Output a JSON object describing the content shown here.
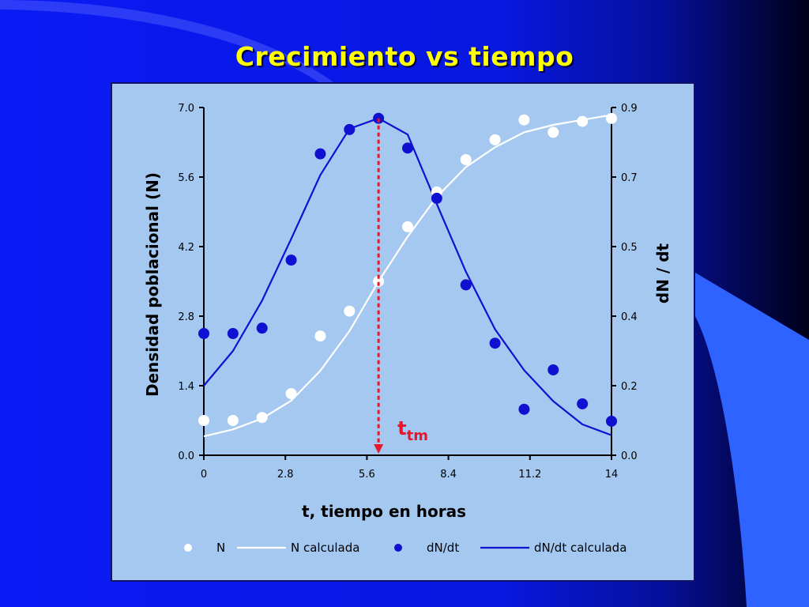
{
  "slide": {
    "title": "Crecimiento vs tiempo",
    "colors": {
      "background": "#0b1bf0",
      "panel": "#a4c8f0",
      "title": "#ffff00",
      "annotation": "#e8162a"
    }
  },
  "chart_data": {
    "type": "scatter",
    "title": "",
    "xlabel": "t, tiempo en horas",
    "ylabel_left": "Densidad poblacional (N)",
    "ylabel_right": "dN / dt",
    "xlim": [
      0,
      14
    ],
    "ylim_left": [
      0,
      7.0
    ],
    "ylim_right": [
      0,
      0.9
    ],
    "x_ticks": [
      "0",
      "2.8",
      "5.6",
      "8.4",
      "11.2",
      "14"
    ],
    "y_left_ticks": [
      "0.0",
      "1.4",
      "2.8",
      "4.2",
      "5.6",
      "7.0"
    ],
    "y_right_ticks": [
      "0.0",
      "0.2",
      "0.4",
      "0.5",
      "0.7",
      "0.9"
    ],
    "grid": false,
    "legend_position": "bottom",
    "series": [
      {
        "name": "N",
        "kind": "points",
        "axis": "left",
        "color": "#ffffff",
        "x": [
          0,
          1,
          2,
          3,
          4,
          5,
          6,
          7,
          8,
          9,
          10,
          11,
          12,
          13,
          14
        ],
        "y": [
          0.7,
          0.7,
          0.76,
          1.24,
          2.4,
          2.9,
          3.5,
          4.6,
          5.3,
          5.95,
          6.35,
          6.75,
          6.5,
          6.72,
          6.78
        ]
      },
      {
        "name": "N calculada",
        "kind": "line",
        "axis": "left",
        "color": "#ffffff",
        "x": [
          0,
          1,
          2,
          3,
          4,
          5,
          6,
          7,
          8,
          9,
          10,
          11,
          12,
          13,
          14
        ],
        "y": [
          0.38,
          0.52,
          0.74,
          1.1,
          1.7,
          2.5,
          3.5,
          4.4,
          5.2,
          5.8,
          6.2,
          6.5,
          6.65,
          6.75,
          6.85
        ]
      },
      {
        "name": "dN/dt",
        "kind": "points",
        "axis": "right",
        "color": "#1010d0",
        "x": [
          0,
          1,
          2,
          3,
          4,
          5,
          6,
          7,
          8,
          9,
          10,
          11,
          12,
          13,
          14
        ],
        "y": [
          0.315,
          0.315,
          0.329,
          0.505,
          0.78,
          0.843,
          0.872,
          0.795,
          0.665,
          0.441,
          0.29,
          0.119,
          0.221,
          0.133,
          0.088
        ]
      },
      {
        "name": "dN/dt calculada",
        "kind": "line",
        "axis": "right",
        "color": "#1010d0",
        "x": [
          0,
          1,
          2,
          3,
          4,
          5,
          6,
          7,
          8,
          9,
          10,
          11,
          12,
          13,
          14
        ],
        "y": [
          0.18,
          0.27,
          0.4,
          0.56,
          0.725,
          0.845,
          0.872,
          0.83,
          0.65,
          0.475,
          0.326,
          0.22,
          0.14,
          0.08,
          0.052
        ]
      }
    ],
    "annotations": [
      {
        "text": "t",
        "subscript": "tm",
        "x": 6,
        "kind": "dashed-arrow",
        "color": "#e8162a"
      }
    ]
  }
}
